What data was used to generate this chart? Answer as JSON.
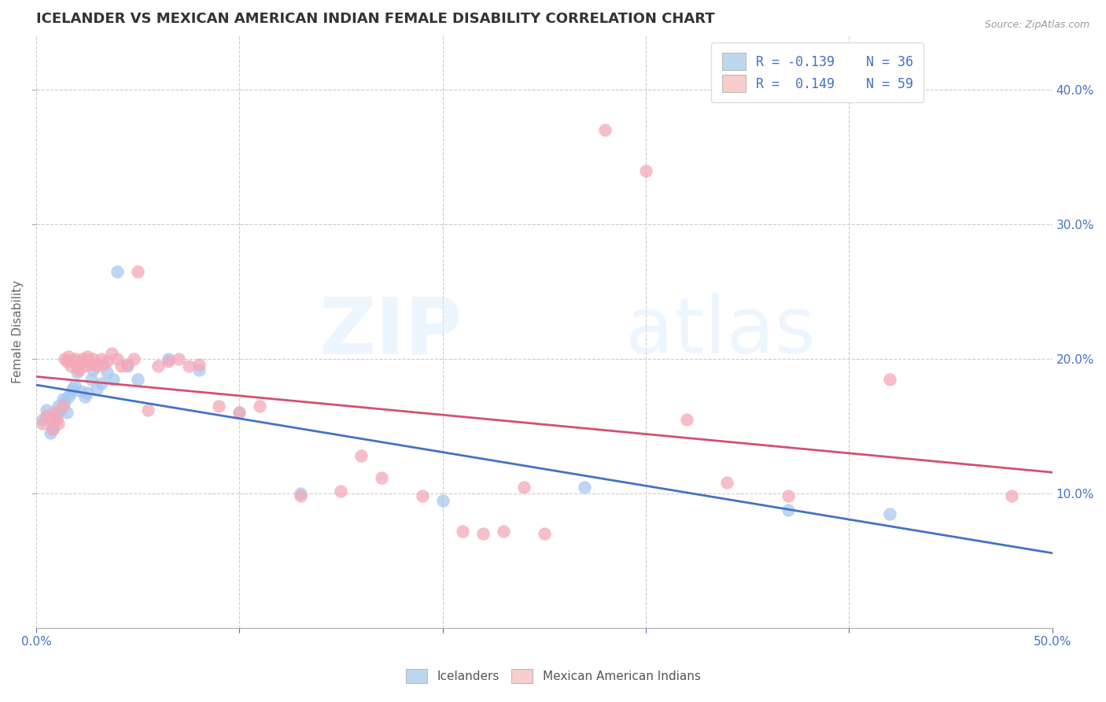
{
  "title": "ICELANDER VS MEXICAN AMERICAN INDIAN FEMALE DISABILITY CORRELATION CHART",
  "source": "Source: ZipAtlas.com",
  "ylabel": "Female Disability",
  "xlim": [
    0.0,
    0.5
  ],
  "ylim": [
    0.0,
    0.44
  ],
  "xtick_vals": [
    0.0,
    0.1,
    0.2,
    0.3,
    0.4,
    0.5
  ],
  "xtick_labels_show": [
    "0.0%",
    "",
    "",
    "",
    "",
    "50.0%"
  ],
  "ytick_vals": [
    0.1,
    0.2,
    0.3,
    0.4
  ],
  "ytick_labels": [
    "10.0%",
    "20.0%",
    "30.0%",
    "40.0%"
  ],
  "blue_color": "#A8C8F0",
  "pink_color": "#F4A8B8",
  "blue_line_color": "#4472C4",
  "pink_line_color": "#D45070",
  "legend_blue_color": "#BDD7EE",
  "legend_pink_color": "#F8CECC",
  "watermark_zip": "ZIP",
  "watermark_atlas": "atlas",
  "R_blue": -0.139,
  "N_blue": 36,
  "R_pink": 0.149,
  "N_pink": 59,
  "blue_scatter_x": [
    0.003,
    0.005,
    0.007,
    0.008,
    0.009,
    0.01,
    0.011,
    0.012,
    0.013,
    0.014,
    0.015,
    0.016,
    0.017,
    0.018,
    0.019,
    0.02,
    0.022,
    0.024,
    0.025,
    0.027,
    0.028,
    0.03,
    0.032,
    0.035,
    0.038,
    0.04,
    0.045,
    0.05,
    0.065,
    0.08,
    0.1,
    0.13,
    0.2,
    0.27,
    0.37,
    0.42
  ],
  "blue_scatter_y": [
    0.155,
    0.162,
    0.145,
    0.148,
    0.155,
    0.158,
    0.165,
    0.162,
    0.17,
    0.168,
    0.16,
    0.172,
    0.175,
    0.178,
    0.18,
    0.19,
    0.176,
    0.172,
    0.175,
    0.185,
    0.192,
    0.178,
    0.182,
    0.19,
    0.185,
    0.265,
    0.195,
    0.185,
    0.2,
    0.192,
    0.16,
    0.1,
    0.095,
    0.105,
    0.088,
    0.085
  ],
  "pink_scatter_x": [
    0.003,
    0.005,
    0.007,
    0.008,
    0.009,
    0.01,
    0.011,
    0.013,
    0.014,
    0.015,
    0.016,
    0.017,
    0.018,
    0.019,
    0.02,
    0.021,
    0.022,
    0.023,
    0.024,
    0.025,
    0.026,
    0.027,
    0.028,
    0.03,
    0.032,
    0.033,
    0.035,
    0.037,
    0.04,
    0.042,
    0.045,
    0.048,
    0.05,
    0.055,
    0.06,
    0.065,
    0.07,
    0.075,
    0.08,
    0.09,
    0.1,
    0.11,
    0.13,
    0.15,
    0.16,
    0.17,
    0.19,
    0.21,
    0.22,
    0.23,
    0.24,
    0.25,
    0.28,
    0.3,
    0.32,
    0.34,
    0.37,
    0.42,
    0.48
  ],
  "pink_scatter_y": [
    0.152,
    0.158,
    0.155,
    0.148,
    0.16,
    0.155,
    0.152,
    0.165,
    0.2,
    0.198,
    0.202,
    0.195,
    0.198,
    0.2,
    0.195,
    0.192,
    0.198,
    0.2,
    0.195,
    0.202,
    0.198,
    0.196,
    0.2,
    0.195,
    0.2,
    0.196,
    0.198,
    0.204,
    0.2,
    0.195,
    0.196,
    0.2,
    0.265,
    0.162,
    0.195,
    0.198,
    0.2,
    0.195,
    0.196,
    0.165,
    0.16,
    0.165,
    0.098,
    0.102,
    0.128,
    0.112,
    0.098,
    0.072,
    0.07,
    0.072,
    0.105,
    0.07,
    0.37,
    0.34,
    0.155,
    0.108,
    0.098,
    0.185,
    0.098
  ],
  "background_color": "#FFFFFF",
  "grid_color": "#CCCCCC",
  "title_fontsize": 13,
  "label_fontsize": 11,
  "tick_fontsize": 11
}
